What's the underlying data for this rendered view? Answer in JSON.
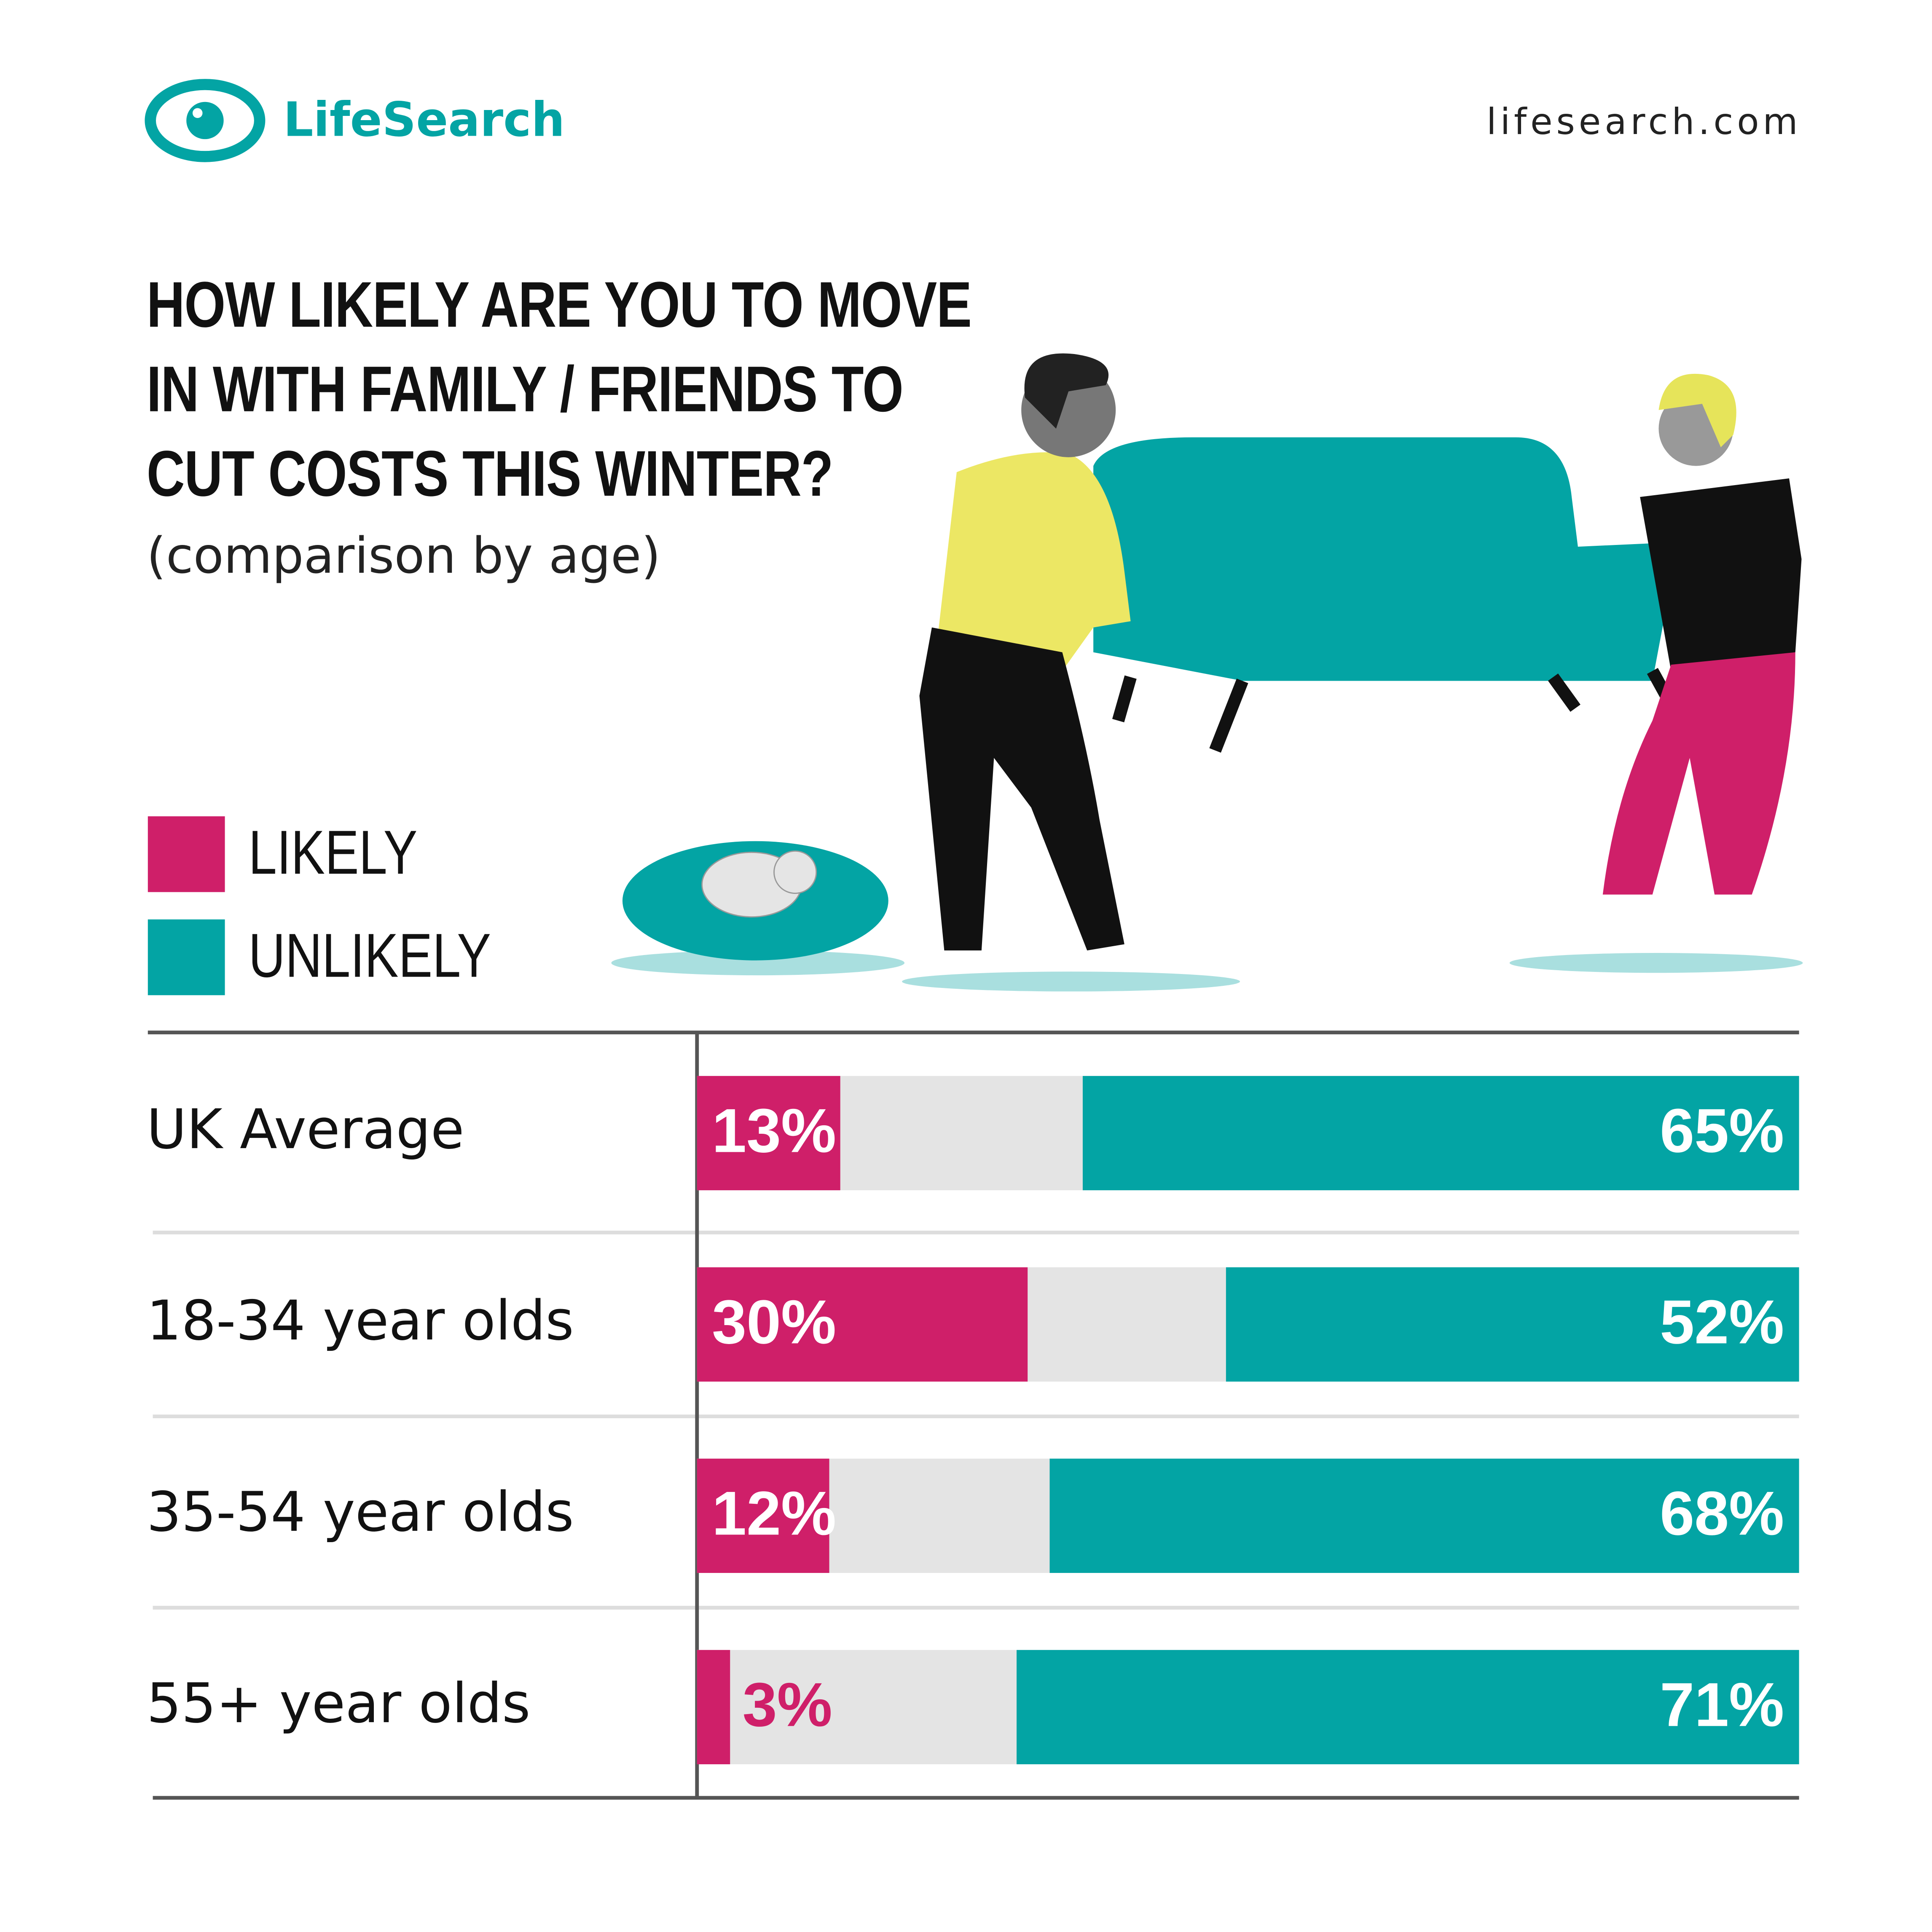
{
  "header": {
    "logo_text": "LifeSearch",
    "url": "lifesearch.com"
  },
  "chart_data": {
    "type": "bar",
    "orientation": "horizontal",
    "stacked": true,
    "title": "HOW LIKELY ARE YOU TO MOVE IN WITH FAMILY / FRIENDS TO CUT COSTS THIS WINTER?",
    "subtitle": "(comparison by age)",
    "categories": [
      "UK Average",
      "18-34 year olds",
      "35-54 year olds",
      "55+ year olds"
    ],
    "series": [
      {
        "name": "LIKELY",
        "color": "#cf1f69",
        "values": [
          13,
          30,
          12,
          3
        ],
        "value_labels": [
          "13%",
          "30%",
          "12%",
          "3%"
        ]
      },
      {
        "name": "UNLIKELY",
        "color": "#03a4a4",
        "values": [
          65,
          52,
          68,
          71
        ],
        "value_labels": [
          "65%",
          "52%",
          "68%",
          "71%"
        ]
      }
    ],
    "xlim": [
      0,
      100
    ]
  }
}
